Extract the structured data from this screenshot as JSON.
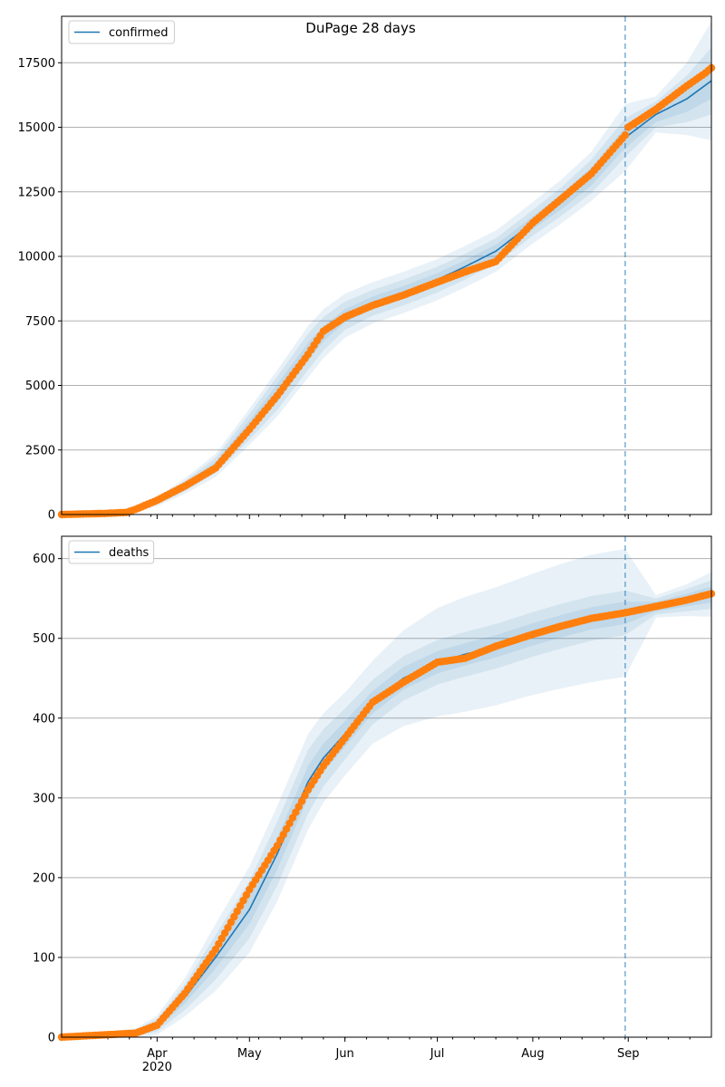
{
  "chart_data": {
    "title": "DuPage 28 days",
    "type": "line",
    "x_axis": {
      "type": "date",
      "range": [
        "2020-03-01",
        "2020-09-28"
      ],
      "major_ticks": [
        {
          "date": "2020-04-01",
          "label": "Apr",
          "sublabel": "2020"
        },
        {
          "date": "2020-05-01",
          "label": "May",
          "sublabel": ""
        },
        {
          "date": "2020-06-01",
          "label": "Jun",
          "sublabel": ""
        },
        {
          "date": "2020-07-01",
          "label": "Jul",
          "sublabel": ""
        },
        {
          "date": "2020-08-01",
          "label": "Aug",
          "sublabel": ""
        },
        {
          "date": "2020-09-01",
          "label": "Sep",
          "sublabel": ""
        }
      ],
      "minor_ticks_every_days": 7
    },
    "forecast_start": "2020-08-31",
    "colors": {
      "model_line": "#1f77b4",
      "observed": "#ff7f0e",
      "band": "#1f77b4",
      "grid": "#b0b0b0",
      "forecast_line": "#1f77b4"
    },
    "grid": true,
    "panels": [
      {
        "legend": "confirmed",
        "legend_position": "top-left",
        "ylim": [
          0,
          19300
        ],
        "yticks": [
          0,
          2500,
          5000,
          7500,
          10000,
          12500,
          15000,
          17500
        ],
        "model": {
          "x": [
            "2020-03-01",
            "2020-03-15",
            "2020-03-25",
            "2020-04-01",
            "2020-04-10",
            "2020-04-20",
            "2020-05-01",
            "2020-05-10",
            "2020-05-20",
            "2020-05-25",
            "2020-06-01",
            "2020-06-10",
            "2020-06-20",
            "2020-07-01",
            "2020-07-10",
            "2020-07-20",
            "2020-08-01",
            "2020-08-10",
            "2020-08-20",
            "2020-08-31",
            "2020-09-10",
            "2020-09-20",
            "2020-09-28"
          ],
          "y": [
            0,
            50,
            150,
            500,
            1100,
            1900,
            3400,
            4700,
            6300,
            7000,
            7700,
            8200,
            8600,
            9100,
            9600,
            10200,
            11300,
            12100,
            13100,
            14600,
            15500,
            16100,
            16800
          ],
          "band_half_widths": [
            [
              0,
              10,
              20,
              60,
              100,
              150,
              250,
              350,
              350,
              300,
              250,
              250,
              250,
              250,
              250,
              250,
              250,
              300,
              350,
              400,
              300,
              500,
              700
            ],
            [
              0,
              20,
              40,
              120,
              200,
              300,
              500,
              650,
              700,
              650,
              550,
              500,
              500,
              500,
              500,
              500,
              500,
              550,
              650,
              750,
              500,
              900,
              1300
            ],
            [
              0,
              30,
              60,
              180,
              300,
              450,
              700,
              900,
              1000,
              950,
              850,
              800,
              800,
              800,
              800,
              800,
              800,
              850,
              950,
              1300,
              700,
              1400,
              2300
            ]
          ]
        },
        "observed": {
          "x": [
            "2020-03-01",
            "2020-03-15",
            "2020-03-22",
            "2020-03-25",
            "2020-04-01",
            "2020-04-10",
            "2020-04-20",
            "2020-05-01",
            "2020-05-10",
            "2020-05-20",
            "2020-05-25",
            "2020-06-01",
            "2020-06-10",
            "2020-06-20",
            "2020-07-01",
            "2020-07-10",
            "2020-07-20",
            "2020-08-01",
            "2020-08-10",
            "2020-08-20",
            "2020-08-31",
            "2020-09-01",
            "2020-09-10",
            "2020-09-20",
            "2020-09-26",
            "2020-09-28"
          ],
          "y": [
            0,
            40,
            80,
            200,
            550,
            1100,
            1800,
            3300,
            4600,
            6200,
            7100,
            7650,
            8100,
            8500,
            9000,
            9400,
            9800,
            11300,
            12200,
            13200,
            14700,
            15000,
            15700,
            16600,
            17100,
            17300
          ]
        }
      },
      {
        "legend": "deaths",
        "legend_position": "top-left",
        "ylim": [
          0,
          628
        ],
        "yticks": [
          0,
          100,
          200,
          300,
          400,
          500,
          600
        ],
        "model": {
          "x": [
            "2020-03-01",
            "2020-03-25",
            "2020-04-01",
            "2020-04-10",
            "2020-04-20",
            "2020-05-01",
            "2020-05-10",
            "2020-05-20",
            "2020-05-25",
            "2020-06-01",
            "2020-06-10",
            "2020-06-20",
            "2020-07-01",
            "2020-07-10",
            "2020-07-20",
            "2020-08-01",
            "2020-08-10",
            "2020-08-20",
            "2020-08-31",
            "2020-09-10",
            "2020-09-20",
            "2020-09-28"
          ],
          "y": [
            0,
            5,
            15,
            50,
            100,
            160,
            230,
            320,
            350,
            380,
            420,
            450,
            470,
            480,
            490,
            505,
            515,
            525,
            532,
            540,
            548,
            555
          ],
          "band_half_widths": [
            [
              0,
              2,
              4,
              8,
              14,
              18,
              20,
              20,
              18,
              16,
              14,
              14,
              14,
              14,
              14,
              14,
              14,
              14,
              14,
              6,
              8,
              10
            ],
            [
              0,
              4,
              8,
              16,
              28,
              36,
              40,
              40,
              36,
              32,
              28,
              28,
              28,
              28,
              28,
              28,
              28,
              28,
              28,
              10,
              14,
              18
            ],
            [
              0,
              6,
              12,
              24,
              42,
              54,
              60,
              60,
              56,
              52,
              52,
              60,
              68,
              72,
              74,
              76,
              78,
              80,
              80,
              14,
              20,
              28
            ]
          ]
        },
        "observed": {
          "x": [
            "2020-03-01",
            "2020-03-25",
            "2020-04-01",
            "2020-04-10",
            "2020-04-20",
            "2020-05-01",
            "2020-05-10",
            "2020-05-20",
            "2020-05-25",
            "2020-06-01",
            "2020-06-10",
            "2020-06-20",
            "2020-07-01",
            "2020-07-10",
            "2020-07-20",
            "2020-08-01",
            "2020-08-10",
            "2020-08-20",
            "2020-08-31",
            "2020-09-10",
            "2020-09-20",
            "2020-09-28"
          ],
          "y": [
            0,
            5,
            15,
            55,
            110,
            185,
            240,
            310,
            340,
            375,
            420,
            445,
            470,
            475,
            490,
            505,
            515,
            525,
            532,
            540,
            548,
            556
          ]
        }
      }
    ]
  }
}
